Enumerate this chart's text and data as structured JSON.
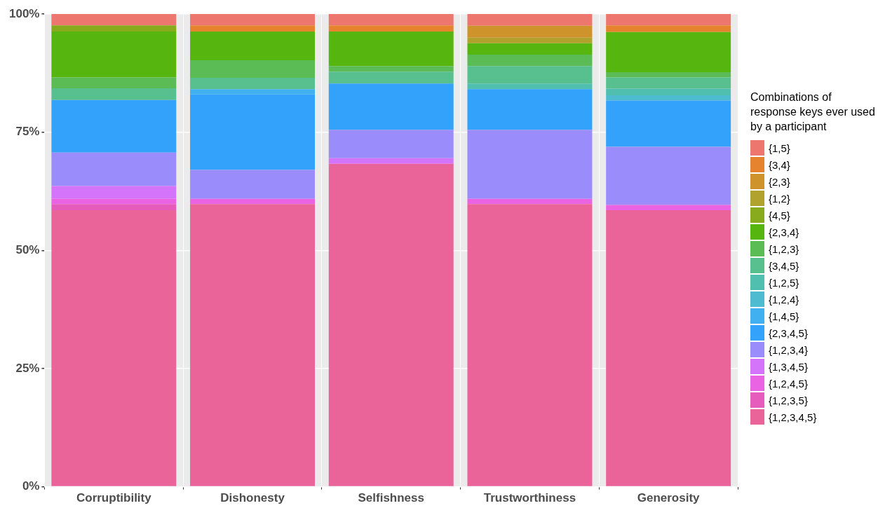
{
  "chart_data": {
    "type": "bar",
    "stacked": true,
    "legend": "right",
    "legend_title": "Combinations of response keys ever used by a participant",
    "grid": true,
    "categories": [
      "Corruptibility",
      "Dishonesty",
      "Selfishness",
      "Trustworthiness",
      "Generosity"
    ],
    "ylim": [
      0,
      100
    ],
    "yticks": [
      {
        "value": 0,
        "label": "0%"
      },
      {
        "value": 25,
        "label": "25%"
      },
      {
        "value": 50,
        "label": "50%"
      },
      {
        "value": 75,
        "label": "75%"
      },
      {
        "value": 100,
        "label": "100%"
      }
    ],
    "series": [
      {
        "name": "{1,2,3,4,5}",
        "color": "#ea6399",
        "values": [
          58.5,
          59.8,
          68.3,
          59.8,
          58.5
        ]
      },
      {
        "name": "{1,2,3,5}",
        "color": "#e65cbc",
        "values": [
          1.3,
          0,
          0,
          0,
          0
        ]
      },
      {
        "name": "{1,2,4,5}",
        "color": "#ea63e3",
        "values": [
          1.1,
          1.1,
          0,
          1.1,
          1.1
        ]
      },
      {
        "name": "{1,3,4,5}",
        "color": "#d474fa",
        "values": [
          2.7,
          0,
          1.2,
          0,
          0
        ]
      },
      {
        "name": "{1,2,3,4}",
        "color": "#9b8cfc",
        "values": [
          7.1,
          6.1,
          6.0,
          14.6,
          12.3
        ]
      },
      {
        "name": "{2,3,4,5}",
        "color": "#32a2fb",
        "values": [
          11.1,
          16.0,
          9.8,
          8.6,
          9.8
        ]
      },
      {
        "name": "{1,4,5}",
        "color": "#40b0f0",
        "values": [
          0,
          1.1,
          0,
          0,
          0
        ]
      },
      {
        "name": "{1,2,4}",
        "color": "#4ebbd0",
        "values": [
          0,
          0,
          0,
          0,
          1.1
        ]
      },
      {
        "name": "{1,2,5}",
        "color": "#51bfb0",
        "values": [
          0,
          0,
          0,
          1.2,
          1.4
        ]
      },
      {
        "name": "{3,4,5}",
        "color": "#58c08e",
        "values": [
          2.5,
          2.4,
          2.5,
          3.7,
          2.4
        ]
      },
      {
        "name": "{1,2,3}",
        "color": "#5bbb55",
        "values": [
          2.3,
          3.7,
          1.2,
          2.4,
          1.1
        ]
      },
      {
        "name": "{2,3,4}",
        "color": "#56b50e",
        "values": [
          9.7,
          6.1,
          7.3,
          2.4,
          8.5
        ]
      },
      {
        "name": "{4,5}",
        "color": "#88ab1e",
        "values": [
          1.3,
          0,
          0,
          0,
          0
        ]
      },
      {
        "name": "{1,2}",
        "color": "#b0a22c",
        "values": [
          0,
          0,
          0,
          1.2,
          0
        ]
      },
      {
        "name": "{2,3}",
        "color": "#cf932c",
        "values": [
          0,
          0,
          0,
          2.5,
          0
        ]
      },
      {
        "name": "{3,4}",
        "color": "#e6832f",
        "values": [
          0,
          1.3,
          1.3,
          0,
          1.4
        ]
      },
      {
        "name": "{1,5}",
        "color": "#ed766f",
        "values": [
          2.4,
          2.4,
          2.4,
          2.5,
          2.4
        ]
      }
    ]
  }
}
